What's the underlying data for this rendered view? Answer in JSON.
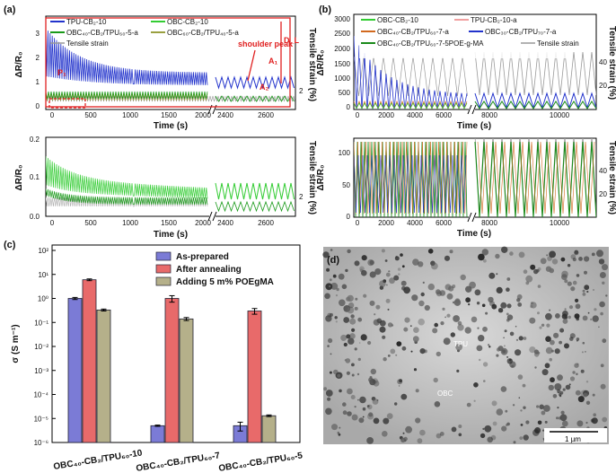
{
  "panels": {
    "a": {
      "label": "(a)",
      "xlabel": "Time (s)",
      "ylabel": "ΔR/R₀",
      "y2label": "Tensile strain (%)",
      "top": {
        "legend": [
          "TPU-CB₂-10",
          "OBC-CB₂-10",
          "OBC₄₀-CB₂/TPU₆₀-5-a",
          "OBC₆₀-CB₂/TPU₄₀-5-a",
          "Tensile strain"
        ],
        "yticks": [
          "0",
          "1",
          "2",
          "3"
        ],
        "y2ticks": [
          "2"
        ],
        "annotations": {
          "shoulder": "shoulder peak",
          "A1": "A₁",
          "A2": "A₂",
          "DL": "D_L",
          "P1": "P₁"
        }
      },
      "bottom": {
        "yticks": [
          "0.0",
          "0.1",
          "0.2"
        ],
        "y2ticks": [
          "2"
        ]
      },
      "xticks_left": [
        "0",
        "500",
        "1000",
        "1500",
        "2000"
      ],
      "xticks_right": [
        "2400",
        "2600"
      ]
    },
    "b": {
      "label": "(b)",
      "xlabel": "Time (s)",
      "ylabel": "ΔR/R₀",
      "y2label": "Tensile strain (%)",
      "legend": [
        "OBC-CB₂-10",
        "TPU-CB₂-10-a",
        "OBC₄₀-CB₂/TPU₆₀-7-a",
        "OBC₃₀-CB₂/TPU₇₀-7-a",
        "OBC₄₀-CB₂/TPU₆₀-7-5POE-g-MA",
        "Tensile strain"
      ],
      "top_yticks": [
        "0",
        "500",
        "1000",
        "1500",
        "2000",
        "2500",
        "3000"
      ],
      "bottom_yticks": [
        "0",
        "50",
        "100"
      ],
      "y2ticks": [
        "20",
        "40"
      ],
      "xticks_left": [
        "0",
        "2000",
        "4000",
        "6000",
        "8000"
      ],
      "xticks_right": [
        "8000",
        "10000"
      ]
    },
    "c": {
      "label": "(c)"
    },
    "d": {
      "label": "(d)",
      "tpu": "TPU",
      "obc": "OBC",
      "scalebar": "1 µm"
    }
  },
  "chart_data": {
    "type": "bar",
    "title": "",
    "ylabel": "σ (S m⁻¹)",
    "yscale": "log",
    "ylim": [
      1e-06,
      100
    ],
    "yticks": [
      "10⁻⁶",
      "10⁻⁵",
      "10⁻⁴",
      "10⁻³",
      "10⁻²",
      "10⁻¹",
      "10⁰",
      "10¹",
      "10²"
    ],
    "categories": [
      "OBC₄₀-CB₂/TPU₆₀-10",
      "OBC₄₀-CB₂/TPU₆₀-7",
      "OBC₄₀-CB₂/TPU₆₀-5"
    ],
    "legend_position": "top-right",
    "series": [
      {
        "name": "As-prepared",
        "color": "#7b7bd6",
        "values": [
          1.0,
          5e-06,
          5e-06
        ],
        "errors": [
          0.1,
          3e-07,
          2e-06
        ]
      },
      {
        "name": "After annealing",
        "color": "#e86a6a",
        "values": [
          6.0,
          1.0,
          0.3
        ],
        "errors": [
          0.5,
          0.3,
          0.08
        ]
      },
      {
        "name": "Adding  5 m% POEgMA",
        "color": "#b5b08a",
        "values": [
          0.33,
          0.14,
          1.3e-05
        ],
        "errors": [
          0.03,
          0.02,
          1e-06
        ]
      }
    ]
  }
}
